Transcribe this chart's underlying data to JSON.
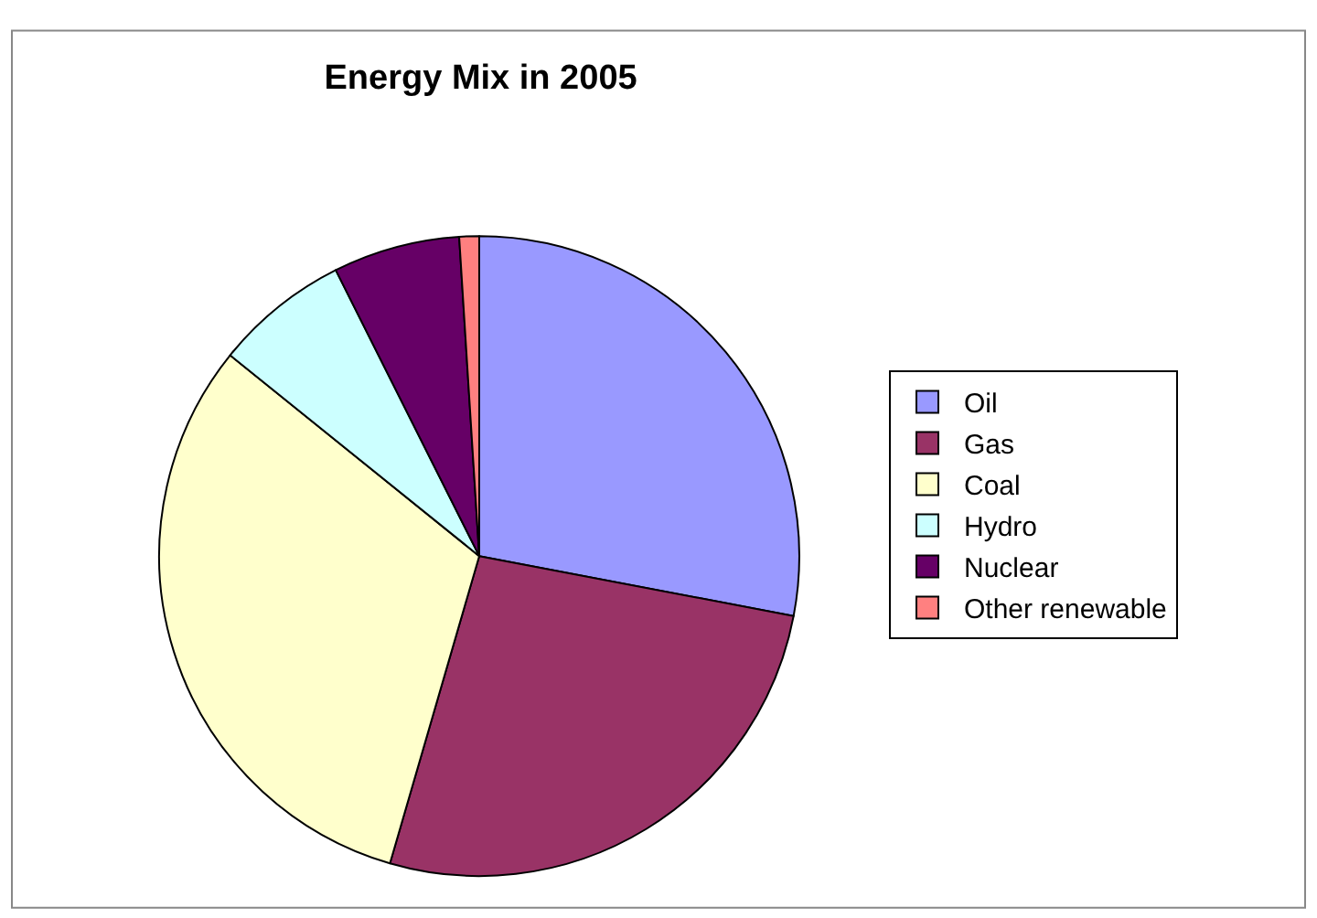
{
  "chart_data": {
    "type": "pie",
    "title": "Energy Mix in 2005",
    "categories": [
      "Oil",
      "Gas",
      "Coal",
      "Hydro",
      "Nuclear",
      "Other renewable"
    ],
    "values": [
      28,
      26.5,
      31.3,
      6.8,
      6.4,
      1.0
    ],
    "colors": [
      "#9999ff",
      "#993366",
      "#ffffcc",
      "#ccffff",
      "#660066",
      "#ff8080"
    ],
    "legend": "right"
  }
}
